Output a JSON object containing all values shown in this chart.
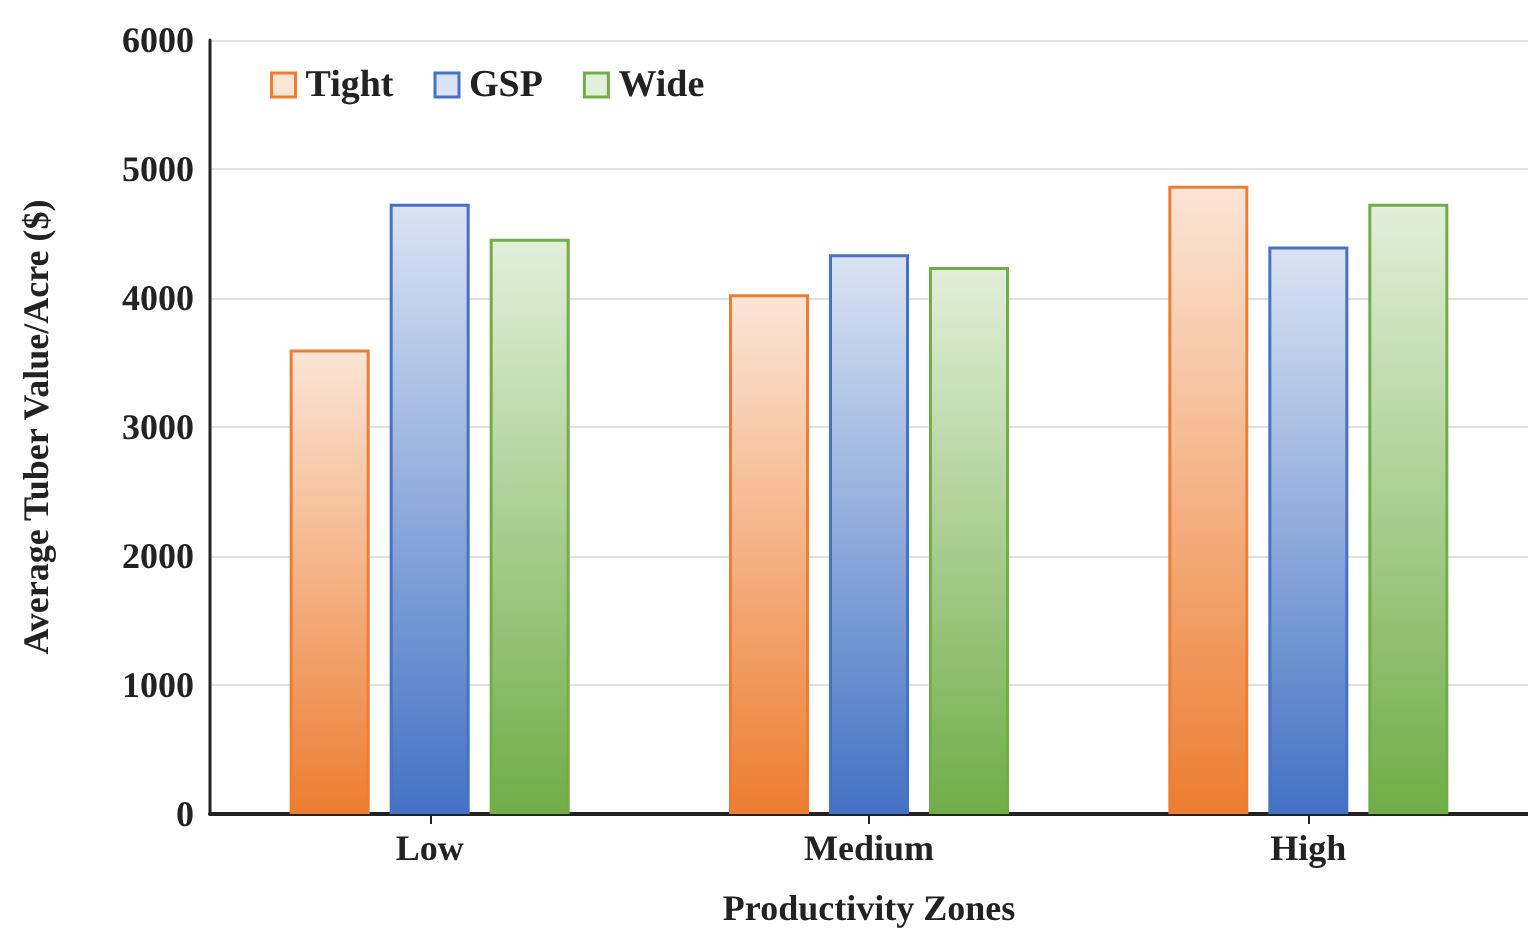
{
  "chart_data": {
    "type": "bar",
    "xlabel": "Productivity Zones",
    "ylabel": "Average Tuber Value/Acre ($)",
    "categories": [
      "Low",
      "Medium",
      "High"
    ],
    "series": [
      {
        "name": "Tight",
        "color": "#ed7d31",
        "values": [
          3600,
          4030,
          4870
        ]
      },
      {
        "name": "GSP",
        "color": "#4472c4",
        "values": [
          4730,
          4340,
          4400
        ]
      },
      {
        "name": "Wide",
        "color": "#70ad47",
        "values": [
          4460,
          4240,
          4730
        ]
      }
    ],
    "ylim": [
      0,
      6000
    ],
    "yticks": [
      0,
      1000,
      2000,
      3000,
      4000,
      5000,
      6000
    ],
    "grid": "y",
    "legend": "top left"
  }
}
